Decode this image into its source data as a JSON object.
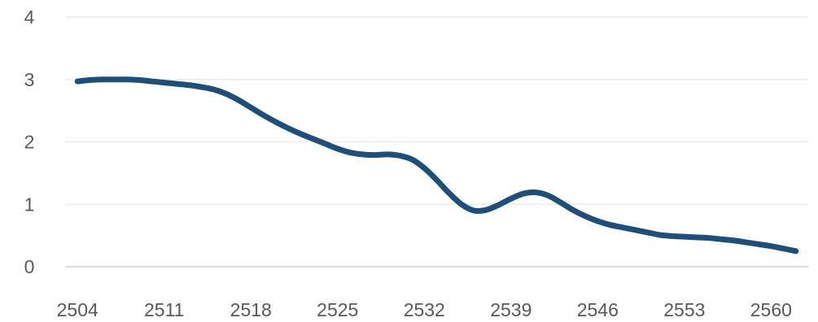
{
  "chart_data": {
    "type": "line",
    "title": "",
    "xlabel": "",
    "ylabel": "",
    "x_tick_labels": [
      "2504",
      "2511",
      "2518",
      "2525",
      "2532",
      "2539",
      "2546",
      "2553",
      "2560"
    ],
    "y_tick_labels": [
      "0",
      "1",
      "2",
      "3",
      "4"
    ],
    "xlim": [
      2503,
      2563
    ],
    "ylim": [
      0,
      4
    ],
    "grid": true,
    "colors": {
      "line": "#1f4e79",
      "grid": "#e8e8e8",
      "axis": "#d0d0d0",
      "tick_text": "#595959"
    },
    "series": [
      {
        "name": "",
        "x": [
          2504,
          2505,
          2506,
          2507,
          2508,
          2509,
          2510,
          2511,
          2512,
          2513,
          2514,
          2515,
          2516,
          2517,
          2518,
          2519,
          2520,
          2521,
          2522,
          2523,
          2524,
          2525,
          2526,
          2527,
          2528,
          2529,
          2530,
          2531,
          2532,
          2533,
          2534,
          2535,
          2536,
          2537,
          2538,
          2539,
          2540,
          2541,
          2542,
          2543,
          2544,
          2545,
          2546,
          2547,
          2548,
          2549,
          2550,
          2551,
          2552,
          2553,
          2554,
          2555,
          2556,
          2557,
          2558,
          2559,
          2560,
          2561,
          2562
        ],
        "values": [
          2.97,
          2.99,
          3.0,
          3.0,
          3.0,
          2.99,
          2.97,
          2.95,
          2.93,
          2.91,
          2.88,
          2.84,
          2.77,
          2.67,
          2.55,
          2.43,
          2.32,
          2.22,
          2.13,
          2.05,
          1.97,
          1.89,
          1.83,
          1.8,
          1.79,
          1.8,
          1.78,
          1.72,
          1.58,
          1.39,
          1.18,
          1.0,
          0.9,
          0.91,
          0.99,
          1.09,
          1.17,
          1.19,
          1.14,
          1.03,
          0.91,
          0.81,
          0.73,
          0.67,
          0.63,
          0.59,
          0.55,
          0.51,
          0.49,
          0.48,
          0.47,
          0.46,
          0.44,
          0.42,
          0.39,
          0.36,
          0.33,
          0.29,
          0.25
        ]
      }
    ]
  }
}
